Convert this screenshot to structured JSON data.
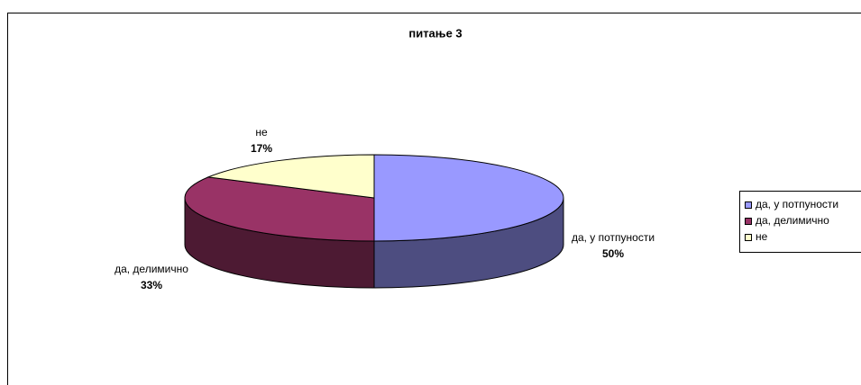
{
  "chart_data": {
    "type": "pie",
    "title": "питање 3",
    "categories": [
      "да, у потпуности",
      "да, делимично",
      "не"
    ],
    "values": [
      50,
      33,
      17
    ],
    "value_labels": [
      "50%",
      "33%",
      "17%"
    ],
    "colors": [
      "#9999ff",
      "#993366",
      "#ffffcc"
    ],
    "legend": "right"
  }
}
